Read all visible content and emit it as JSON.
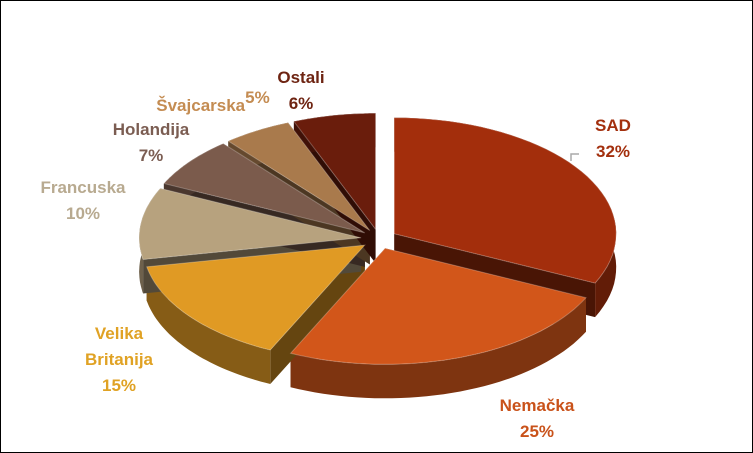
{
  "chart_data": {
    "type": "pie",
    "categories": [
      "SAD",
      "Nemačka",
      "Velika Britanija",
      "Francuska",
      "Holandija",
      "Švajcarska",
      "Ostali"
    ],
    "values": [
      32,
      25,
      15,
      10,
      7,
      5,
      6
    ],
    "value_labels": [
      "32%",
      "25%",
      "15%",
      "10%",
      "7%",
      "5%",
      "6%"
    ],
    "colors": [
      "#a32e0c",
      "#d2561a",
      "#e09a24",
      "#b7a27e",
      "#7b5b4c",
      "#a97a4c",
      "#6a1d0c"
    ],
    "label_colors": [
      "#a3300e",
      "#c9521a",
      "#e0a224",
      "#b8aa90",
      "#7b5d52",
      "#c48c52",
      "#6e2412"
    ]
  }
}
